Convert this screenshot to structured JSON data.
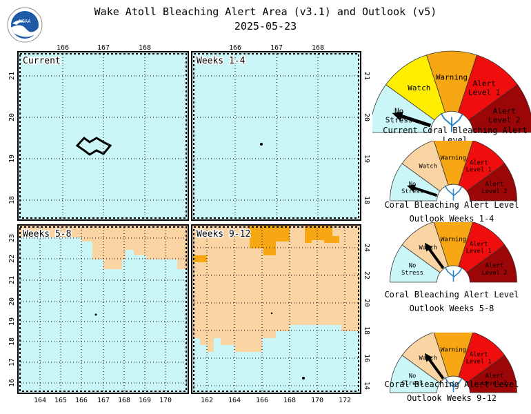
{
  "header": {
    "title": "Wake Atoll Bleaching Alert Area (v3.1) and Outlook (v5)",
    "date": "2025-05-23"
  },
  "colors": {
    "no_stress": "#cbf6f8",
    "watch": "#fbd4a3",
    "warning": "#f7a714",
    "alert1": "#ef0d0d",
    "alert2": "#9b0606",
    "current_watch": "#ffee00"
  },
  "panels": [
    {
      "id": "current",
      "label": "Current",
      "top_ticks": [
        "166",
        "167",
        "168"
      ],
      "side_ticks": [
        "21",
        "20",
        "19",
        "18"
      ]
    },
    {
      "id": "w1_4",
      "label": "Weeks 1-4",
      "top_ticks": [
        "166",
        "167",
        "168"
      ],
      "side_ticks": [
        "21",
        "20",
        "19",
        "18"
      ]
    },
    {
      "id": "w5_8",
      "label": "Weeks 5-8",
      "bottom_ticks": [
        "164",
        "165",
        "166",
        "167",
        "168",
        "169",
        "170"
      ],
      "side_ticks": [
        "23",
        "22",
        "21",
        "20",
        "19",
        "18",
        "17",
        "16"
      ]
    },
    {
      "id": "w9_12",
      "label": "Weeks 9-12",
      "bottom_ticks": [
        "162",
        "164",
        "166",
        "168",
        "170",
        "172"
      ],
      "side_ticks": [
        "24",
        "22",
        "20",
        "18",
        "16",
        "14"
      ]
    }
  ],
  "gauge": {
    "levels": [
      "No Stress",
      "Watch",
      "Warning",
      "Alert Level 1",
      "Alert Level 2"
    ],
    "level_lines": [
      [
        "No",
        "Stress"
      ],
      [
        "Watch"
      ],
      [
        "Warning"
      ],
      [
        "Alert",
        "Level 1"
      ],
      [
        "Alert",
        "Level 2"
      ]
    ]
  },
  "gauges": [
    {
      "id": "g_current",
      "caption_lines": [
        "Current Coral Bleaching Alert Level"
      ],
      "level": "No Stress",
      "watch_color_key": "current_watch"
    },
    {
      "id": "g_w1_4",
      "caption_lines": [
        "Coral Bleaching Alert Level",
        "Outlook Weeks 1-4"
      ],
      "level": "No Stress",
      "watch_color_key": "watch"
    },
    {
      "id": "g_w5_8",
      "caption_lines": [
        "Coral Bleaching Alert Level",
        "Outlook Weeks 5-8"
      ],
      "level": "Watch",
      "watch_color_key": "watch"
    },
    {
      "id": "g_w9_12",
      "caption_lines": [
        "Coral Bleaching Alert Level",
        "Outlook Weeks 9-12"
      ],
      "level": "Watch",
      "watch_color_key": "watch"
    }
  ]
}
